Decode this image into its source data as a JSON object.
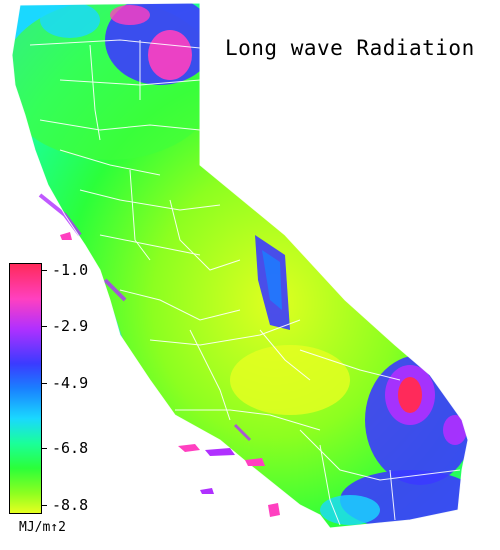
{
  "map": {
    "title": "Long wave Radiation",
    "region": "California",
    "colors": {
      "high": "#ff2a5a",
      "magenta": "#ff40c0",
      "purple": "#b030ff",
      "blue": "#3b3bff",
      "cyan": "#1ad8ff",
      "green": "#2bff3a",
      "yellow_green": "#c8ff20",
      "county_lines": "#ffffff"
    }
  },
  "legend": {
    "ticks": [
      "-1.0",
      "-2.9",
      "-4.9",
      "-6.8",
      "-8.8"
    ],
    "units": "MJ/m↑2"
  }
}
